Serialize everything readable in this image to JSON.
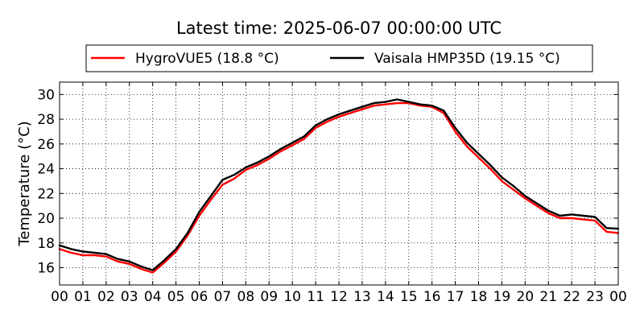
{
  "chart_data": {
    "type": "line",
    "title": "Latest time: 2025-06-07 00:00:00 UTC",
    "xlabel": "",
    "ylabel": "Temperature (°C)",
    "xlim": [
      0,
      24
    ],
    "ylim": [
      14.6,
      31
    ],
    "x_ticks": [
      0,
      1,
      2,
      3,
      4,
      5,
      6,
      7,
      8,
      9,
      10,
      11,
      12,
      13,
      14,
      15,
      16,
      17,
      18,
      19,
      20,
      21,
      22,
      23,
      24
    ],
    "x_tick_labels": [
      "00",
      "01",
      "02",
      "03",
      "04",
      "05",
      "06",
      "07",
      "08",
      "09",
      "10",
      "11",
      "12",
      "13",
      "14",
      "15",
      "16",
      "17",
      "18",
      "19",
      "20",
      "21",
      "22",
      "23",
      "00"
    ],
    "y_ticks": [
      16,
      18,
      20,
      22,
      24,
      26,
      28,
      30
    ],
    "y_tick_labels": [
      "16",
      "18",
      "20",
      "22",
      "24",
      "26",
      "28",
      "30"
    ],
    "grid": true,
    "legend_position": "top",
    "series": [
      {
        "name": "HygroVUE5 (18.8 °C)",
        "color": "#ff0000",
        "x": [
          0,
          0.5,
          1,
          1.5,
          2,
          2.5,
          3,
          3.5,
          4,
          4.5,
          5,
          5.5,
          6,
          6.5,
          7,
          7.5,
          8,
          8.5,
          9,
          9.5,
          10,
          10.5,
          11,
          11.5,
          12,
          12.5,
          13,
          13.5,
          14,
          14.5,
          15,
          15.5,
          16,
          16.5,
          17,
          17.5,
          18,
          18.5,
          19,
          19.5,
          20,
          20.5,
          21,
          21.5,
          22,
          22.5,
          23,
          23.5,
          24
        ],
        "values": [
          17.5,
          17.2,
          17.0,
          17.0,
          16.9,
          16.5,
          16.3,
          15.9,
          15.6,
          16.4,
          17.3,
          18.6,
          20.2,
          21.5,
          22.7,
          23.2,
          23.9,
          24.3,
          24.8,
          25.4,
          25.9,
          26.4,
          27.3,
          27.8,
          28.2,
          28.5,
          28.8,
          29.1,
          29.2,
          29.3,
          29.3,
          29.1,
          29.0,
          28.5,
          27.0,
          25.8,
          24.9,
          24.0,
          23.0,
          22.3,
          21.6,
          21.0,
          20.4,
          20.0,
          20.0,
          19.9,
          19.8,
          18.9,
          18.8
        ]
      },
      {
        "name": "Vaisala HMP35D (19.15 °C)",
        "color": "#000000",
        "x": [
          0,
          0.5,
          1,
          1.5,
          2,
          2.5,
          3,
          3.5,
          4,
          4.5,
          5,
          5.5,
          6,
          6.5,
          7,
          7.5,
          8,
          8.5,
          9,
          9.5,
          10,
          10.5,
          11,
          11.5,
          12,
          12.5,
          13,
          13.5,
          14,
          14.5,
          15,
          15.5,
          16,
          16.5,
          17,
          17.5,
          18,
          18.5,
          19,
          19.5,
          20,
          20.5,
          21,
          21.5,
          22,
          22.5,
          23,
          23.5,
          24
        ],
        "values": [
          17.8,
          17.5,
          17.3,
          17.2,
          17.1,
          16.7,
          16.5,
          16.1,
          15.8,
          16.6,
          17.5,
          18.8,
          20.5,
          21.8,
          23.1,
          23.5,
          24.1,
          24.5,
          25.0,
          25.6,
          26.1,
          26.6,
          27.5,
          28.0,
          28.4,
          28.7,
          29.0,
          29.3,
          29.4,
          29.6,
          29.4,
          29.2,
          29.1,
          28.7,
          27.3,
          26.1,
          25.2,
          24.3,
          23.3,
          22.6,
          21.8,
          21.2,
          20.6,
          20.2,
          20.3,
          20.2,
          20.1,
          19.2,
          19.15
        ]
      }
    ]
  }
}
